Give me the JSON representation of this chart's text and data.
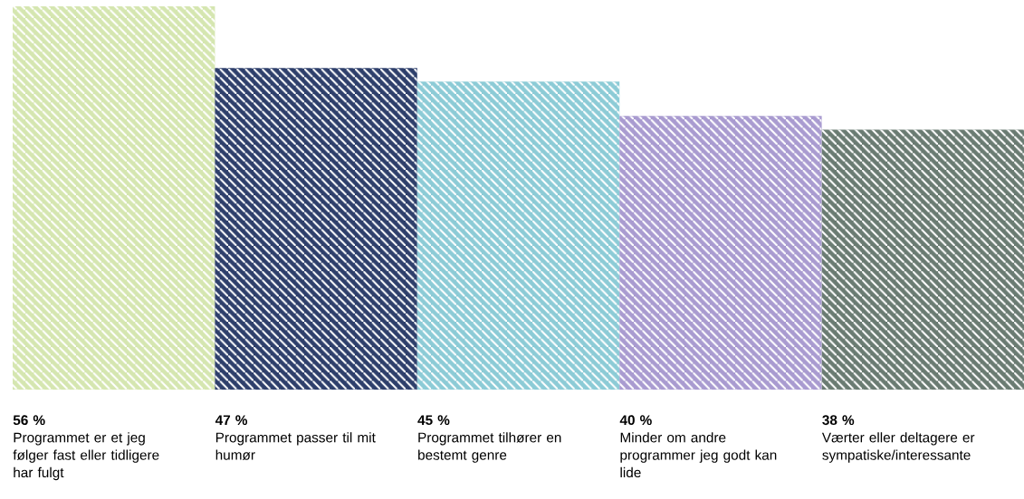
{
  "chart_data": {
    "type": "bar",
    "categories": [
      "Programmet er et jeg følger fast eller tidligere har fulgt",
      "Programmet passer til mit humør",
      "Programmet tilhører en bestemt genre",
      "Minder om andre programmer jeg godt kan lide",
      "Værter eller deltagere er sympatiske/interessante"
    ],
    "values": [
      56,
      47,
      45,
      40,
      38
    ],
    "value_labels": [
      "56 %",
      "47 %",
      "45 %",
      "40 %",
      "38 %"
    ],
    "colors": [
      "#d5e6b0",
      "#2e3f6b",
      "#8ccbd6",
      "#a99bd0",
      "#6a7b72"
    ]
  }
}
